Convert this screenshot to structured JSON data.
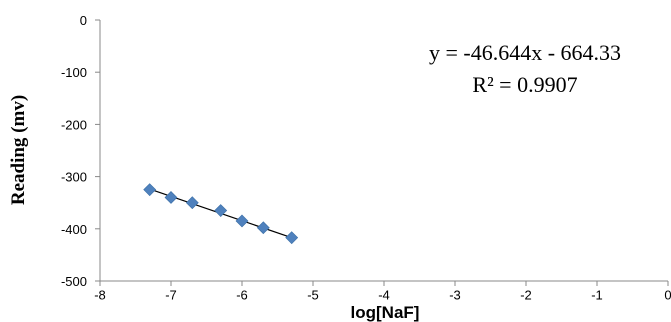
{
  "chart_data": {
    "type": "scatter",
    "xlabel": "log[NaF]",
    "ylabel": "Reading (mv)",
    "xlim": [
      -8,
      0
    ],
    "ylim": [
      -500,
      0
    ],
    "x_ticks": [
      "-8",
      "-7",
      "-6",
      "-5",
      "-4",
      "-3",
      "-2",
      "-1",
      "0"
    ],
    "y_ticks": [
      "0",
      "-100",
      "-200",
      "-300",
      "-400",
      "-500"
    ],
    "grid": false,
    "series": [
      {
        "marker": "diamond",
        "color": "#4F81BD",
        "points": [
          {
            "x": -7.3,
            "y": -325
          },
          {
            "x": -7.0,
            "y": -340
          },
          {
            "x": -6.7,
            "y": -350
          },
          {
            "x": -6.3,
            "y": -365
          },
          {
            "x": -6.0,
            "y": -385
          },
          {
            "x": -5.7,
            "y": -398
          },
          {
            "x": -5.3,
            "y": -417
          }
        ]
      }
    ],
    "trendline": {
      "slope": -46.644,
      "intercept": -664.33,
      "x_range": [
        -7.3,
        -5.3
      ],
      "color": "#000000"
    },
    "annotations": {
      "equation": "y = -46.644x - 664.33",
      "r_squared": "R² = 0.9907"
    }
  }
}
